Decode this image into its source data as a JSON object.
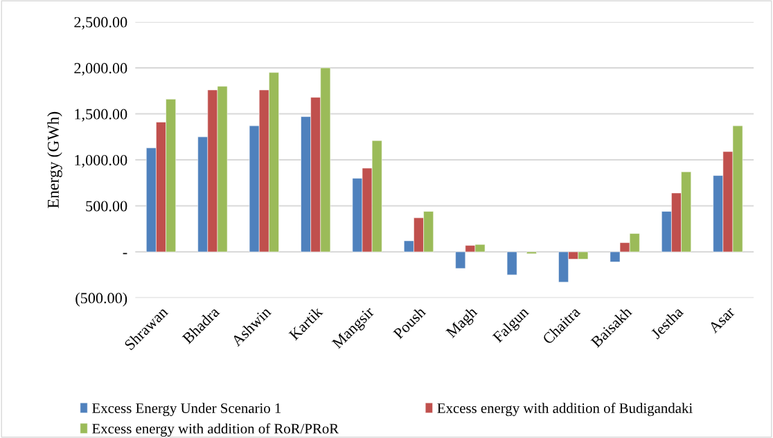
{
  "chart_data": {
    "type": "bar",
    "ylabel": "Energy (GWh)",
    "categories": [
      "Shrawan",
      "Bhadra",
      "Ashwin",
      "Kartik",
      "Mangsir",
      "Poush",
      "Magh",
      "Falgun",
      "Chaitra",
      "Baisakh",
      "Jestha",
      "Asar"
    ],
    "series": [
      {
        "name": "Excess Energy Under Scenario 1",
        "color": "#4f81bd",
        "values": [
          1130,
          1250,
          1370,
          1470,
          800,
          120,
          -180,
          -250,
          -330,
          -110,
          440,
          830
        ]
      },
      {
        "name": "Excess energy with addition of Budigandaki",
        "color": "#c0504d",
        "values": [
          1410,
          1760,
          1760,
          1680,
          910,
          370,
          70,
          null,
          -80,
          100,
          640,
          1090
        ]
      },
      {
        "name": "Excess energy with addition of RoR/PRoR",
        "color": "#9bbb59",
        "values": [
          1660,
          1800,
          1950,
          2000,
          1210,
          440,
          80,
          -20,
          -80,
          200,
          870,
          1370
        ]
      }
    ],
    "ylim": [
      -500,
      2500
    ],
    "yticks": [
      {
        "value": -500,
        "label": "(500.00)"
      },
      {
        "value": 0,
        "label": "-"
      },
      {
        "value": 500,
        "label": "500.00"
      },
      {
        "value": 1000,
        "label": "1,000.00"
      },
      {
        "value": 1500,
        "label": "1,500.00"
      },
      {
        "value": 2000,
        "label": "2,000.00"
      },
      {
        "value": 2500,
        "label": "2,500.00"
      }
    ],
    "grid": "y",
    "legend": "bottom"
  }
}
